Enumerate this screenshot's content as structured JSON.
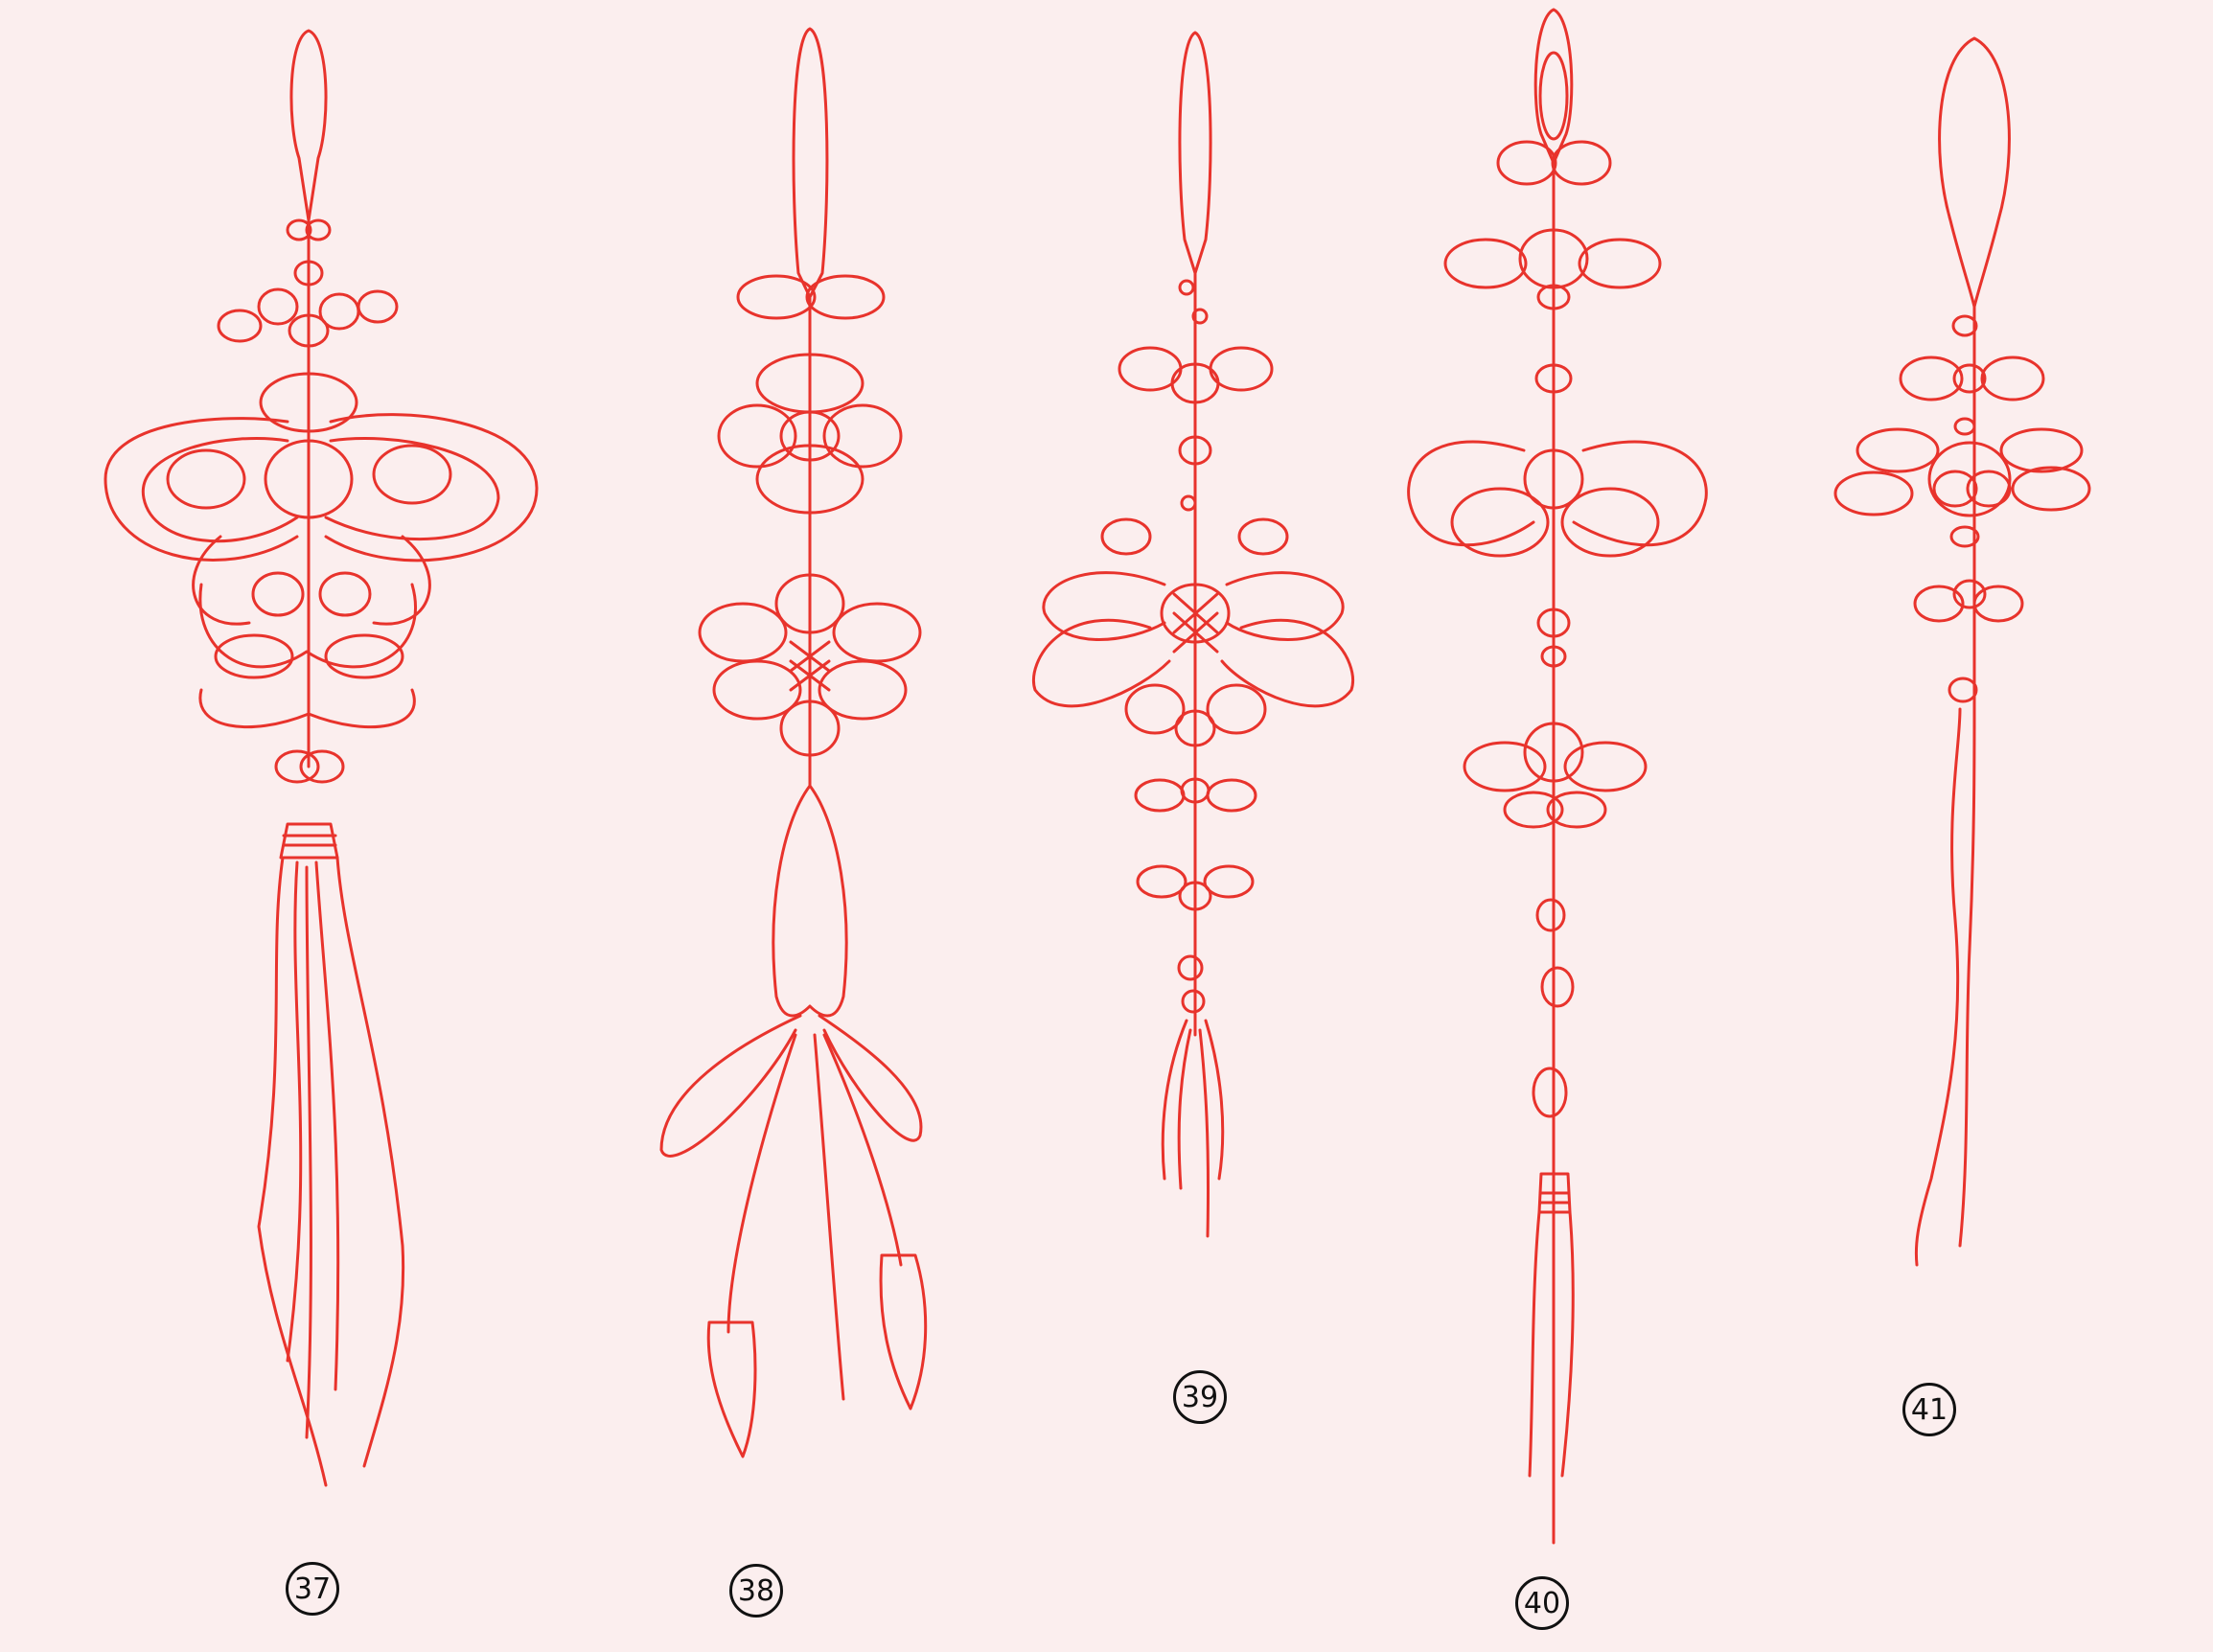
{
  "colors": {
    "paper": "#fbeeee",
    "ink": "#e8332c",
    "label_ink": "#111111"
  },
  "sketches": [
    {
      "id": "knot-37",
      "label": "37"
    },
    {
      "id": "knot-38",
      "label": "38"
    },
    {
      "id": "knot-39",
      "label": "39"
    },
    {
      "id": "knot-40",
      "label": "40"
    },
    {
      "id": "knot-41",
      "label": "41"
    }
  ]
}
